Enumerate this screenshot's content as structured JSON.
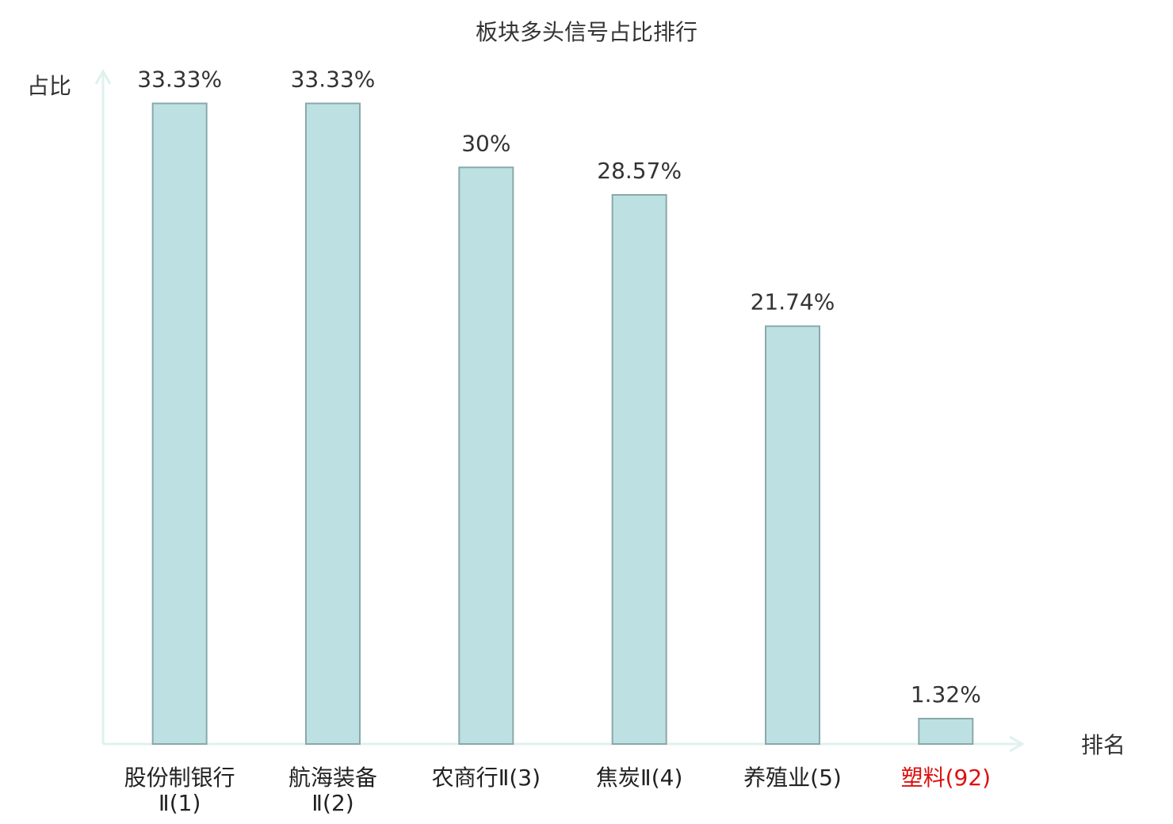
{
  "chart_data": {
    "type": "bar",
    "title": "板块多头信号占比排行",
    "y_label": "占比",
    "x_label": "排名",
    "categories": [
      "股份制银行Ⅱ(1)",
      "航海装备Ⅱ(2)",
      "农商行Ⅱ(3)",
      "焦炭Ⅱ(4)",
      "养殖业(5)",
      "塑料(92)"
    ],
    "category_colors": [
      "#222222",
      "#222222",
      "#222222",
      "#222222",
      "#222222",
      "#dd1111"
    ],
    "values": [
      33.33,
      33.33,
      30,
      28.57,
      21.74,
      1.32
    ],
    "value_labels": [
      "33.33%",
      "33.33%",
      "30%",
      "28.57%",
      "21.74%",
      "1.32%"
    ],
    "color": "#bde1e3",
    "edge_color": "#8aa8aa",
    "axis_color": "#dff1ee",
    "ylim": [
      0,
      35
    ]
  }
}
